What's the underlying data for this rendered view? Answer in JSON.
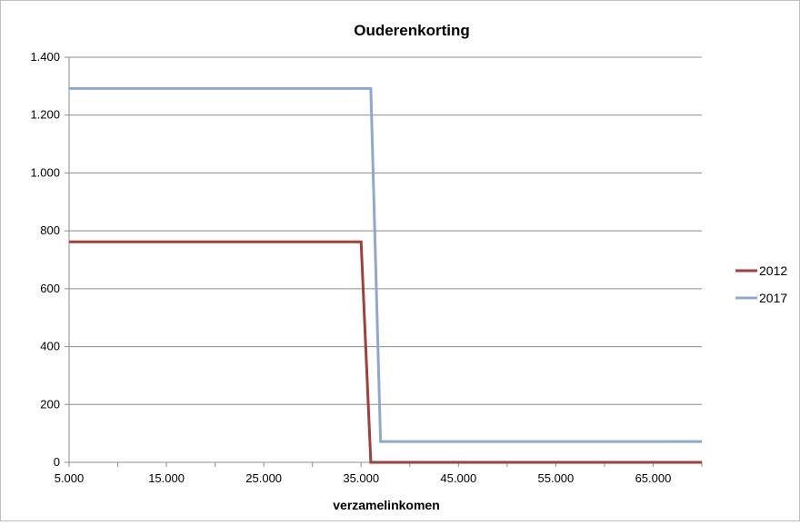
{
  "chart_data": {
    "type": "line",
    "title": "Ouderenkorting",
    "xlabel": "verzamelinkomen",
    "ylabel": "",
    "xlim": [
      5000,
      70000
    ],
    "ylim": [
      0,
      1400
    ],
    "x_ticks": [
      5000,
      15000,
      25000,
      35000,
      45000,
      55000,
      65000
    ],
    "x_tick_labels": [
      "5.000",
      "15.000",
      "25.000",
      "35.000",
      "45.000",
      "55.000",
      "65.000"
    ],
    "y_ticks": [
      0,
      200,
      400,
      600,
      800,
      1000,
      1200,
      1400
    ],
    "y_tick_labels": [
      "0",
      "200",
      "400",
      "600",
      "800",
      "1.000",
      "1.200",
      "1.400"
    ],
    "grid": "horizontal",
    "legend": "right",
    "series": [
      {
        "name": "2012",
        "color": "#a0403d",
        "x": [
          5000,
          35000,
          36000,
          70000
        ],
        "y": [
          762,
          762,
          0,
          0
        ]
      },
      {
        "name": "2017",
        "color": "#8fa8d0",
        "x": [
          5000,
          36000,
          37000,
          70000
        ],
        "y": [
          1292,
          1292,
          72,
          72
        ]
      }
    ]
  }
}
